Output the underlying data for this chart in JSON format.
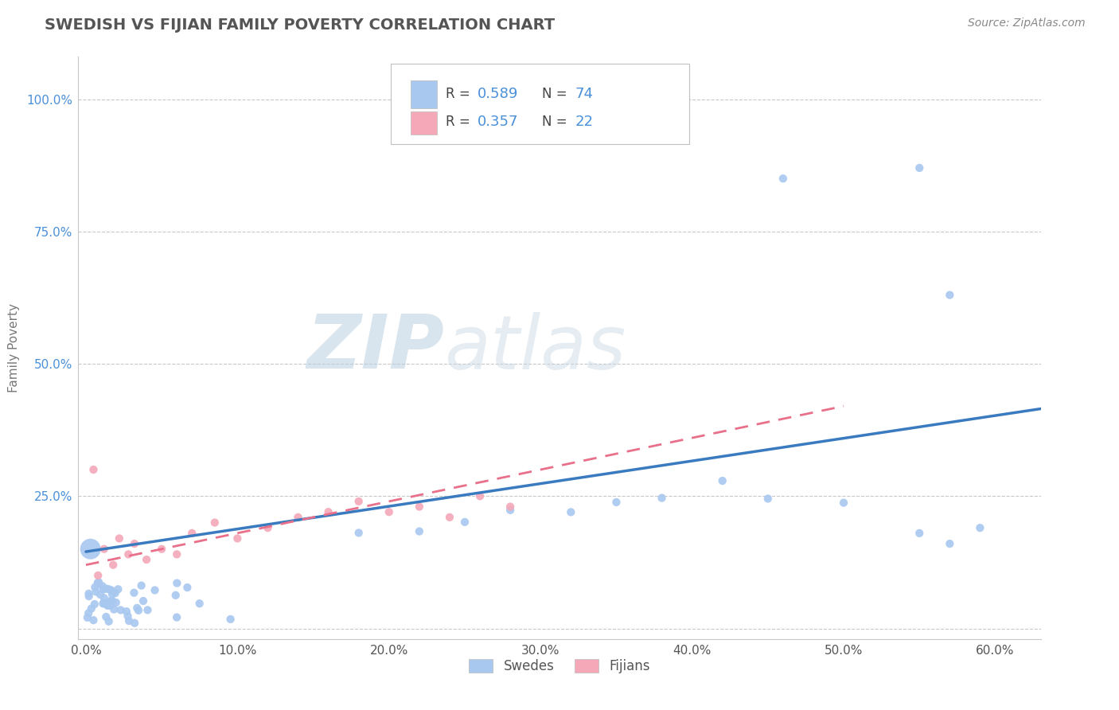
{
  "title": "SWEDISH VS FIJIAN FAMILY POVERTY CORRELATION CHART",
  "source": "Source: ZipAtlas.com",
  "ylabel_label": "Family Poverty",
  "x_ticks": [
    0.0,
    0.1,
    0.2,
    0.3,
    0.4,
    0.5,
    0.6
  ],
  "x_tick_labels": [
    "0.0%",
    "10.0%",
    "20.0%",
    "30.0%",
    "40.0%",
    "50.0%",
    "60.0%"
  ],
  "y_ticks": [
    0.0,
    0.25,
    0.5,
    0.75,
    1.0
  ],
  "y_tick_labels": [
    "",
    "25.0%",
    "50.0%",
    "75.0%",
    "100.0%"
  ],
  "xlim": [
    -0.005,
    0.63
  ],
  "ylim": [
    -0.02,
    1.08
  ],
  "swedish_color": "#a8c8f0",
  "fijian_color": "#f4a8b8",
  "swedish_line_color": "#3a7abf",
  "fijian_line_color": "#e8708a",
  "background_color": "#ffffff",
  "grid_color": "#c8c8c8",
  "legend_r_swedish": "0.589",
  "legend_n_swedish": "74",
  "legend_r_fijian": "0.357",
  "legend_n_fijian": "22",
  "legend_color_num": "#4a90d9",
  "legend_color_label": "#444444",
  "title_color": "#555555",
  "source_color": "#888888",
  "ylabel_color": "#777777",
  "tick_color": "#555555",
  "ytick_color": "#4a90d9",
  "watermark_zip_color": "#c8d8e8",
  "watermark_atlas_color": "#d0dce8"
}
